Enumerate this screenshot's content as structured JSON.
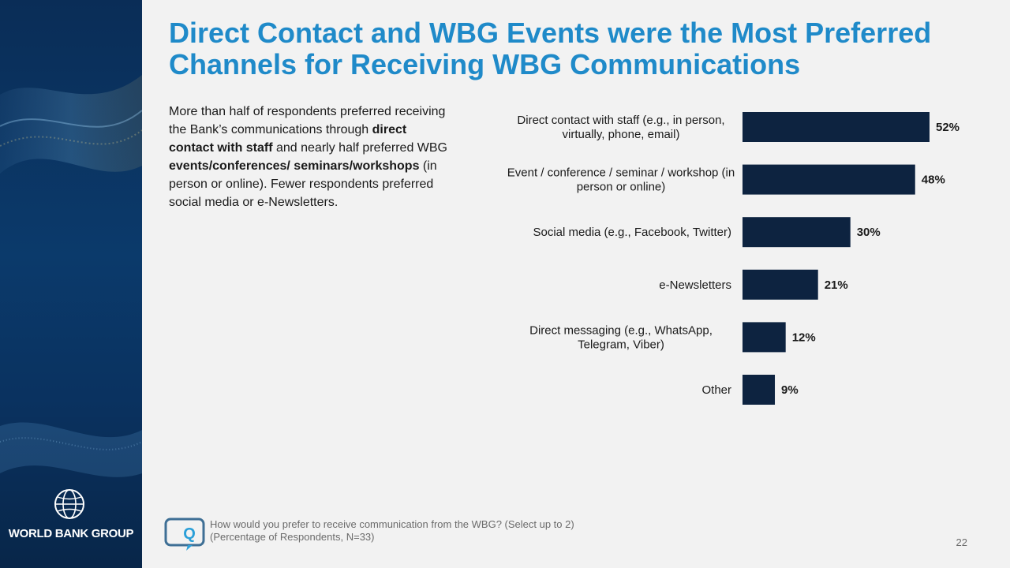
{
  "slide": {
    "title": "Direct Contact and WBG Events were the Most Preferred Channels for Receiving WBG Communications",
    "body": {
      "p1": "More than half of respondents preferred receiving the Bank’s communications through",
      "b1": "direct contact with staff",
      "p2": " and nearly half preferred WBG",
      "b2": "events/conferences/ seminars/workshops",
      "p3": " (in person or online). Fewer respondents preferred social media or e-Newsletters."
    },
    "footer": {
      "question": "How would you prefer to receive communication from the WBG? (Select up to 2)",
      "note": "(Percentage of Respondents, N=33)"
    },
    "page_number": "22",
    "logo_text": "WORLD BANK GROUP",
    "colors": {
      "title": "#1f8ac9",
      "bar": "#0d2340",
      "sidebar": "#0b3a6b"
    },
    "icons": [
      "globe-logo-icon",
      "question-chat-icon"
    ]
  },
  "chart_data": {
    "type": "bar",
    "orientation": "horizontal",
    "categories": [
      [
        "Direct contact with staff (e.g., in person,",
        "virtually, phone, email)"
      ],
      [
        "Event / conference / seminar / workshop (in",
        "person or online)"
      ],
      [
        "Social media (e.g., Facebook, Twitter)"
      ],
      [
        "e-Newsletters"
      ],
      [
        "Direct messaging (e.g., WhatsApp,",
        "Telegram, Viber)"
      ],
      [
        "Other"
      ]
    ],
    "values": [
      52,
      48,
      30,
      21,
      12,
      9
    ],
    "value_labels": [
      "52%",
      "48%",
      "30%",
      "21%",
      "12%",
      "9%"
    ],
    "unit": "%",
    "grid": false,
    "legend": "none"
  }
}
